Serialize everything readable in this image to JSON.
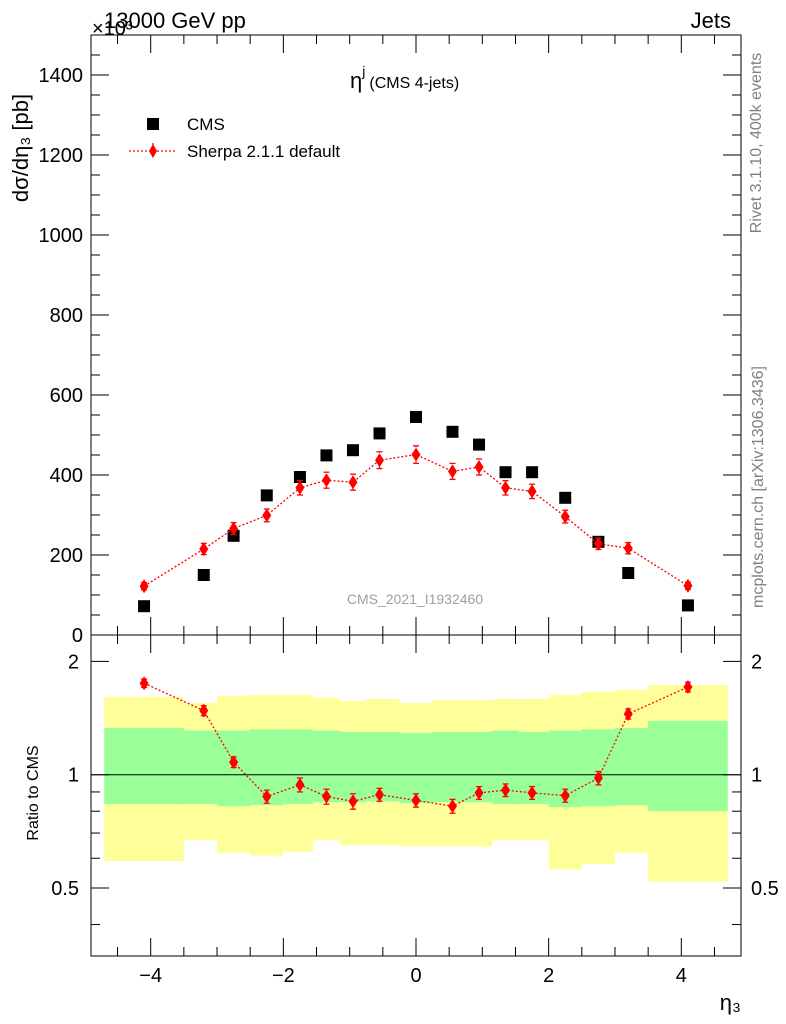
{
  "header": {
    "energy_label": "13000 GeV pp",
    "process_label": "Jets",
    "exponent_label": "×10³"
  },
  "side_labels": {
    "rivet": "Rivet 3.1.10,  400k events",
    "mcplots": "mcplots.cern.ch [arXiv:1306.3436]"
  },
  "watermark": "CMS_2021_I1932460",
  "colors": {
    "data": "#000000",
    "mc": "#ff0000",
    "band_inner": "#99ff99",
    "band_outer": "#ffff99"
  },
  "chart_data": [
    {
      "type": "scatter",
      "title": "η",
      "title_superscript": "j",
      "subtitle": "(CMS 4-jets)",
      "ylabel": "dσ/dη₃ [pb]",
      "ylim": [
        0,
        1500
      ],
      "ylim_note": "values × 10³",
      "yticks": [
        0,
        200,
        400,
        600,
        800,
        1000,
        1200,
        1400
      ],
      "ytick_labels": [
        "0",
        "200",
        "400",
        "600",
        "800",
        "1000",
        "1200",
        "1400"
      ],
      "xlim": [
        -4.9,
        4.9
      ],
      "legend_placement": "top-left",
      "series": [
        {
          "name": "CMS",
          "marker": "square",
          "x": [
            -4.1,
            -3.2,
            -2.75,
            -2.25,
            -1.75,
            -1.35,
            -0.95,
            -0.55,
            0.0,
            0.55,
            0.95,
            1.35,
            1.75,
            2.25,
            2.75,
            3.2,
            4.1
          ],
          "y": [
            72,
            150,
            248,
            349,
            395,
            449,
            462,
            504,
            545,
            508,
            476,
            407,
            407,
            343,
            233,
            155,
            74
          ]
        },
        {
          "name": "Sherpa 2.1.1 default",
          "marker": "diamond",
          "x": [
            -4.1,
            -3.2,
            -2.75,
            -2.25,
            -1.75,
            -1.35,
            -0.95,
            -0.55,
            0.0,
            0.55,
            0.95,
            1.35,
            1.75,
            2.25,
            2.75,
            3.2,
            4.1
          ],
          "y": [
            122,
            215,
            266,
            299,
            368,
            387,
            382,
            437,
            451,
            409,
            420,
            368,
            359,
            296,
            228,
            217,
            123
          ],
          "yerr": [
            9,
            14,
            15,
            16,
            18,
            20,
            20,
            21,
            22,
            20,
            20,
            18,
            18,
            16,
            14,
            14,
            9
          ]
        }
      ]
    },
    {
      "type": "scatter",
      "ylabel": "Ratio to CMS",
      "xlabel": "η₃",
      "xlim": [
        -4.9,
        4.9
      ],
      "ylim": [
        0.33,
        2.35
      ],
      "xticks": [
        -4,
        -2,
        0,
        2,
        4
      ],
      "xtick_labels": [
        "−4",
        "−2",
        "0",
        "2",
        "4"
      ],
      "yticks": [
        0.5,
        1,
        2
      ],
      "ytick_labels": [
        "0.5",
        "1",
        "2"
      ],
      "reference_line": 1,
      "bands": {
        "edges": [
          -4.7,
          -3.5,
          -3.0,
          -2.5,
          -2.0,
          -1.55,
          -1.15,
          -0.75,
          -0.25,
          0.25,
          0.75,
          1.15,
          1.55,
          2.0,
          2.5,
          3.0,
          3.5,
          4.7
        ],
        "inner_low": [
          0.835,
          0.835,
          0.825,
          0.83,
          0.835,
          0.845,
          0.845,
          0.85,
          0.84,
          0.845,
          0.845,
          0.835,
          0.835,
          0.82,
          0.825,
          0.83,
          0.8
        ],
        "inner_high": [
          1.33,
          1.31,
          1.31,
          1.32,
          1.32,
          1.31,
          1.3,
          1.3,
          1.29,
          1.3,
          1.3,
          1.31,
          1.3,
          1.31,
          1.32,
          1.33,
          1.39
        ],
        "outer_low": [
          0.59,
          0.67,
          0.62,
          0.61,
          0.625,
          0.67,
          0.65,
          0.65,
          0.645,
          0.645,
          0.645,
          0.67,
          0.67,
          0.56,
          0.58,
          0.62,
          0.52
        ],
        "outer_high": [
          1.61,
          1.55,
          1.62,
          1.63,
          1.63,
          1.6,
          1.57,
          1.59,
          1.55,
          1.58,
          1.58,
          1.59,
          1.59,
          1.63,
          1.66,
          1.68,
          1.73
        ]
      },
      "series": [
        {
          "name": "Sherpa 2.1.1 default",
          "marker": "diamond",
          "x": [
            -4.1,
            -3.2,
            -2.75,
            -2.25,
            -1.75,
            -1.35,
            -0.95,
            -0.55,
            0.0,
            0.55,
            0.95,
            1.35,
            1.75,
            2.25,
            2.75,
            3.2,
            4.1
          ],
          "y": [
            1.75,
            1.48,
            1.08,
            0.875,
            0.94,
            0.875,
            0.85,
            0.885,
            0.855,
            0.825,
            0.895,
            0.91,
            0.895,
            0.88,
            0.98,
            1.45,
            1.71
          ],
          "yerr": [
            0.045,
            0.045,
            0.035,
            0.035,
            0.04,
            0.04,
            0.04,
            0.035,
            0.035,
            0.035,
            0.035,
            0.035,
            0.035,
            0.035,
            0.04,
            0.045,
            0.05
          ]
        }
      ]
    }
  ]
}
